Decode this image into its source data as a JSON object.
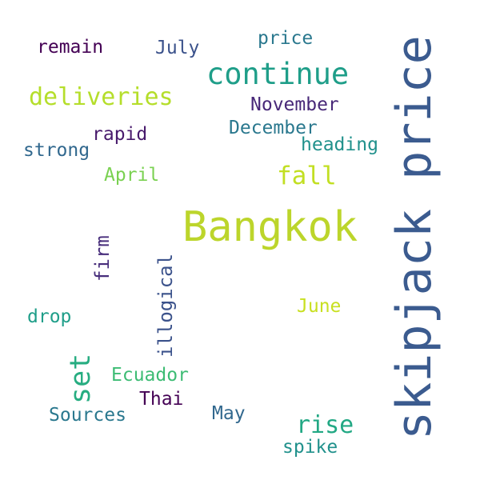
{
  "words": [
    {
      "text": "skipjack price",
      "color": "#3b5b8f",
      "orientation": "vertical"
    },
    {
      "text": "Bangkok",
      "color": "#bcd52b",
      "orientation": "horizontal"
    },
    {
      "text": "continue",
      "color": "#1f9e89",
      "orientation": "horizontal"
    },
    {
      "text": "deliveries",
      "color": "#b5de2b",
      "orientation": "horizontal"
    },
    {
      "text": "fall",
      "color": "#c2df23",
      "orientation": "horizontal"
    },
    {
      "text": "set",
      "color": "#27ad81",
      "orientation": "vertical"
    },
    {
      "text": "rise",
      "color": "#22a884",
      "orientation": "horizontal"
    },
    {
      "text": "illogical",
      "color": "#3b528b",
      "orientation": "vertical"
    },
    {
      "text": "firm",
      "color": "#472d7b",
      "orientation": "vertical"
    },
    {
      "text": "price",
      "color": "#2a788e",
      "orientation": "horizontal"
    },
    {
      "text": "July",
      "color": "#3b528b",
      "orientation": "horizontal"
    },
    {
      "text": "remain",
      "color": "#440154",
      "orientation": "horizontal"
    },
    {
      "text": "November",
      "color": "#482878",
      "orientation": "horizontal"
    },
    {
      "text": "December",
      "color": "#2a788e",
      "orientation": "horizontal"
    },
    {
      "text": "heading",
      "color": "#21918c",
      "orientation": "horizontal"
    },
    {
      "text": "rapid",
      "color": "#481a6c",
      "orientation": "horizontal"
    },
    {
      "text": "strong",
      "color": "#31688e",
      "orientation": "horizontal"
    },
    {
      "text": "April",
      "color": "#7ad151",
      "orientation": "horizontal"
    },
    {
      "text": "drop",
      "color": "#1f9e89",
      "orientation": "horizontal"
    },
    {
      "text": "June",
      "color": "#c8e020",
      "orientation": "horizontal"
    },
    {
      "text": "Ecuador",
      "color": "#3dbc74",
      "orientation": "horizontal"
    },
    {
      "text": "Thai",
      "color": "#440154",
      "orientation": "horizontal"
    },
    {
      "text": "Sources",
      "color": "#2a788e",
      "orientation": "horizontal"
    },
    {
      "text": "May",
      "color": "#31688e",
      "orientation": "horizontal"
    },
    {
      "text": "spike",
      "color": "#21918c",
      "orientation": "horizontal"
    }
  ]
}
